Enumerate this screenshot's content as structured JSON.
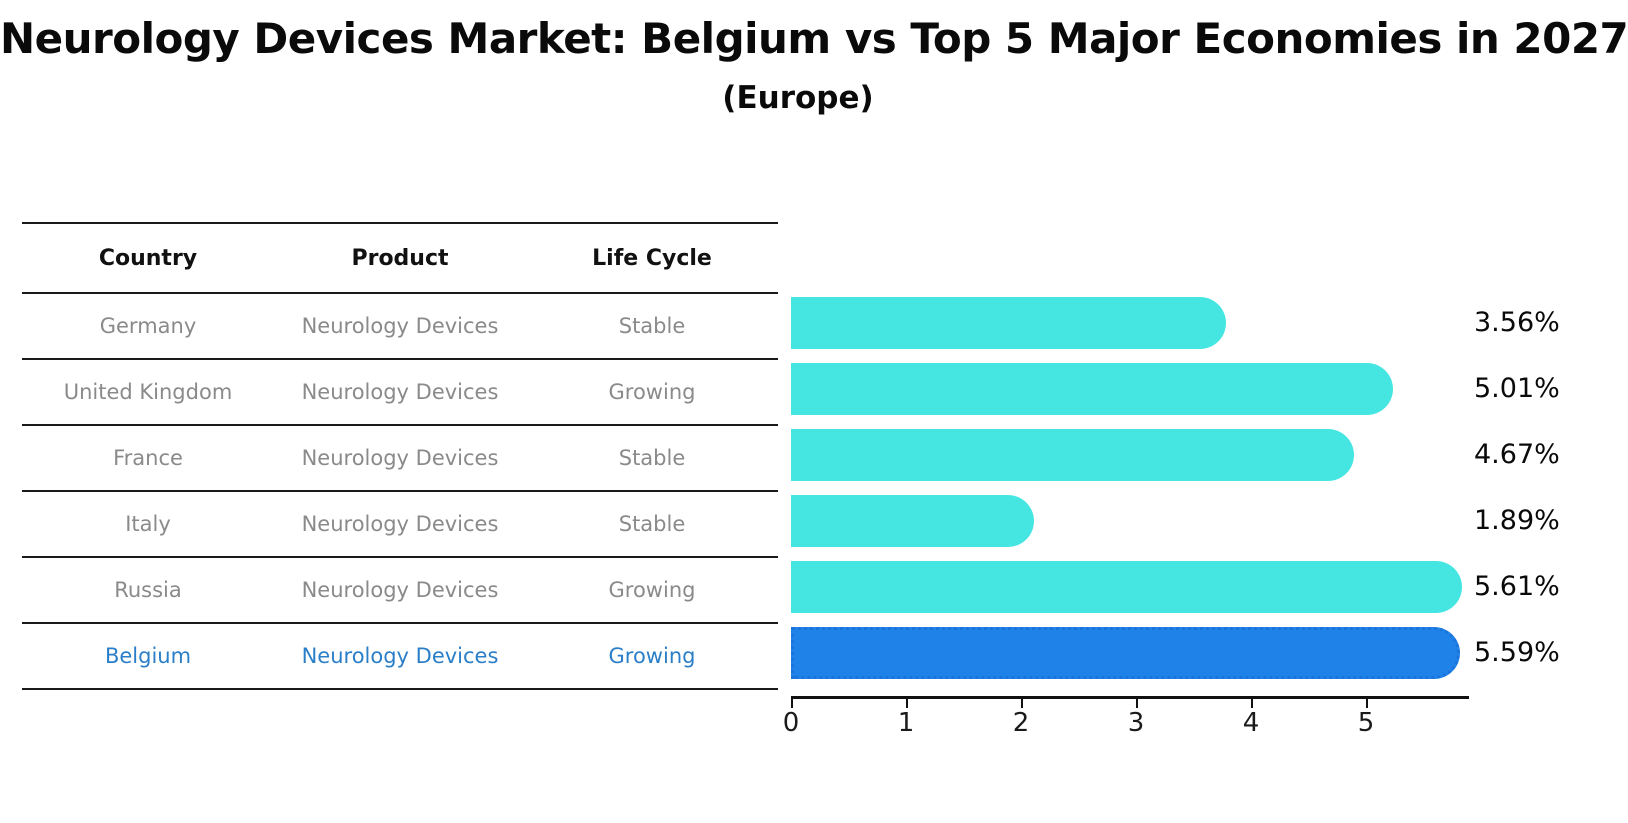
{
  "title": "Neurology Devices Market: Belgium vs Top 5 Major Economies in 2027",
  "subtitle": "(Europe)",
  "table": {
    "headers": [
      "Country",
      "Product",
      "Life Cycle"
    ],
    "rows": [
      {
        "country": "Germany",
        "product": "Neurology Devices",
        "life_cycle": "Stable",
        "highlight": false
      },
      {
        "country": "United Kingdom",
        "product": "Neurology Devices",
        "life_cycle": "Growing",
        "highlight": false
      },
      {
        "country": "France",
        "product": "Neurology Devices",
        "life_cycle": "Stable",
        "highlight": false
      },
      {
        "country": "Italy",
        "product": "Neurology Devices",
        "life_cycle": "Stable",
        "highlight": false
      },
      {
        "country": "Russia",
        "product": "Neurology Devices",
        "life_cycle": "Growing",
        "highlight": false
      },
      {
        "country": "Belgium",
        "product": "Neurology Devices",
        "life_cycle": "Growing",
        "highlight": true
      }
    ]
  },
  "chart_data": {
    "type": "bar",
    "orientation": "horizontal",
    "categories": [
      "Germany",
      "United Kingdom",
      "France",
      "Italy",
      "Russia",
      "Belgium"
    ],
    "values": [
      3.56,
      5.01,
      4.67,
      1.89,
      5.61,
      5.59
    ],
    "value_labels": [
      "3.56%",
      "5.01%",
      "4.67%",
      "1.89%",
      "5.61%",
      "5.59%"
    ],
    "title": "Neurology Devices Market: Belgium vs Top 5 Major Economies in 2027",
    "subtitle": "(Europe)",
    "xlabel": "",
    "ylabel": "",
    "xlim": [
      0,
      5.9
    ],
    "xticks": [
      0,
      1,
      2,
      3,
      4,
      5
    ],
    "grid": false,
    "legend": false,
    "highlight_index": 5
  },
  "colors": {
    "bar": "#45E6E2",
    "highlight_bar": "#1F82E8",
    "highlight_border": "#1b74db",
    "highlight_text": "#2b7fc8",
    "row_text": "#8a8a8a",
    "axis": "#111111"
  }
}
